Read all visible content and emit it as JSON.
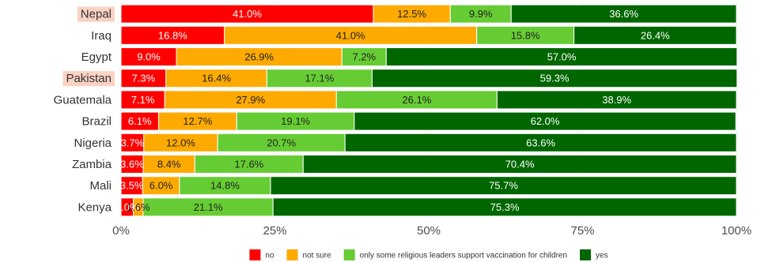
{
  "chart_data": {
    "type": "bar",
    "orientation": "horizontal",
    "stacked": true,
    "percent": true,
    "categories": [
      "Nepal",
      "Iraq",
      "Egypt",
      "Pakistan",
      "Guatemala",
      "Brazil",
      "Nigeria",
      "Zambia",
      "Mali",
      "Kenya"
    ],
    "highlighted_categories": [
      "Nepal",
      "Pakistan"
    ],
    "series": [
      {
        "name": "no",
        "color": "#ff0000",
        "values": [
          41.0,
          16.8,
          9.0,
          7.3,
          7.1,
          6.1,
          3.7,
          3.6,
          3.5,
          2.0
        ],
        "labels": [
          "41.0%",
          "16.8%",
          "9.0%",
          "7.3%",
          "7.1%",
          "6.1%",
          "3.7%",
          "3.6%",
          "3.5%",
          "2.0%"
        ]
      },
      {
        "name": "not sure",
        "color": "#ffaa00",
        "values": [
          12.5,
          41.0,
          26.9,
          16.4,
          27.9,
          12.7,
          12.0,
          8.4,
          6.0,
          1.6
        ],
        "labels": [
          "12.5%",
          "41.0%",
          "26.9%",
          "16.4%",
          "27.9%",
          "12.7%",
          "12.0%",
          "8.4%",
          "6.0%",
          "1.6%"
        ]
      },
      {
        "name": "only some religious leaders support vaccination for children",
        "color": "#66cc33",
        "values": [
          9.9,
          15.8,
          7.2,
          17.1,
          26.1,
          19.1,
          20.7,
          17.6,
          14.8,
          21.1
        ],
        "labels": [
          "9.9%",
          "15.8%",
          "7.2%",
          "17.1%",
          "26.1%",
          "19.1%",
          "20.7%",
          "17.6%",
          "14.8%",
          "21.1%"
        ]
      },
      {
        "name": "yes",
        "color": "#006600",
        "values": [
          36.6,
          26.4,
          57.0,
          59.3,
          38.9,
          62.0,
          63.6,
          70.4,
          75.7,
          75.3
        ],
        "labels": [
          "36.6%",
          "26.4%",
          "57.0%",
          "59.3%",
          "38.9%",
          "62.0%",
          "63.6%",
          "70.4%",
          "75.7%",
          "75.3%"
        ]
      }
    ],
    "x_ticks": [
      "0%",
      "25%",
      "50%",
      "75%",
      "100%"
    ],
    "x_tick_values": [
      0,
      25,
      50,
      75,
      100
    ],
    "xlim": [
      0,
      100
    ],
    "title": "",
    "xlabel": "",
    "ylabel": "",
    "legend_position": "bottom",
    "panel_background": "#ffffff",
    "highlight_color": "#fad2c2"
  }
}
